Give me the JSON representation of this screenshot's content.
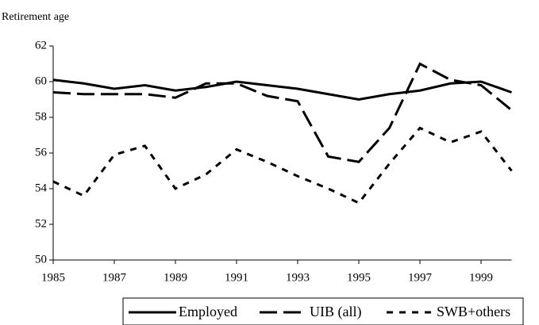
{
  "chart_data": {
    "type": "line",
    "y_label": "Retirement age",
    "x": [
      1985,
      1986,
      1987,
      1988,
      1989,
      1990,
      1991,
      1992,
      1993,
      1994,
      1995,
      1996,
      1997,
      1998,
      1999,
      2000
    ],
    "xlim": [
      1985,
      2000
    ],
    "xticks": [
      1985,
      1987,
      1989,
      1991,
      1993,
      1995,
      1997,
      1999
    ],
    "ylim": [
      50,
      62
    ],
    "yticks": [
      50,
      52,
      54,
      56,
      58,
      60,
      62
    ],
    "legend": "bottom",
    "series": [
      {
        "name": "Employed",
        "color": "#000000",
        "dash": "solid",
        "values": [
          60.1,
          59.9,
          59.6,
          59.8,
          59.5,
          59.7,
          60.0,
          59.8,
          59.6,
          59.3,
          59.0,
          59.3,
          59.5,
          59.9,
          60.0,
          59.4
        ]
      },
      {
        "name": "UIB (all)",
        "color": "#000000",
        "dash": "long",
        "values": [
          59.4,
          59.3,
          59.3,
          59.3,
          59.1,
          59.9,
          59.9,
          59.2,
          58.9,
          55.8,
          55.5,
          57.4,
          61.0,
          60.1,
          59.8,
          58.4
        ]
      },
      {
        "name": "SWB+others",
        "color": "#000000",
        "dash": "short",
        "values": [
          54.4,
          53.6,
          55.9,
          56.4,
          54.0,
          54.8,
          56.2,
          55.5,
          54.7,
          54.0,
          53.2,
          55.4,
          57.4,
          56.6,
          57.2,
          55.0
        ]
      }
    ]
  }
}
